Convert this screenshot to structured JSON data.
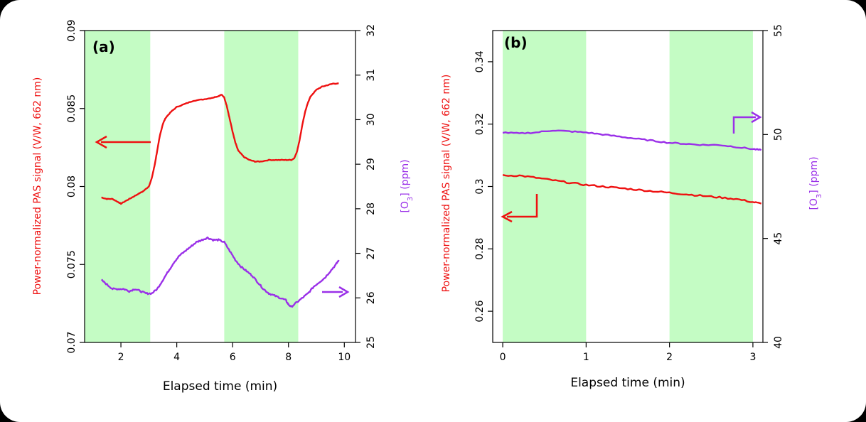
{
  "colors": {
    "pas": "#ee1111",
    "o3": "#9a30e8",
    "shade": "#c4fcc4",
    "axis": "#000000"
  },
  "chart_data": [
    {
      "type": "line",
      "panel_label": "(a)",
      "xlabel": "Elapsed time (min)",
      "ylabel_left": "Power-normalized PAS  signal  (V/W, 662 nm)",
      "ylabel_right_prefix": "[O",
      "ylabel_right_sub": "3",
      "ylabel_right_suffix": "] (ppm)",
      "xlim": [
        0.7,
        10.4
      ],
      "ylim_left": [
        0.07,
        0.09
      ],
      "ylim_right": [
        25,
        32
      ],
      "x_ticks": [
        2,
        4,
        6,
        8,
        10
      ],
      "x_tick_labels": [
        "2",
        "4",
        "6",
        "8",
        "10"
      ],
      "y_left_ticks": [
        0.07,
        0.075,
        0.08,
        0.085,
        0.09
      ],
      "y_left_tick_labels": [
        "0.07",
        "0.075",
        "0.08",
        "0.085",
        "0.09"
      ],
      "y_right_ticks": [
        25,
        26,
        27,
        28,
        29,
        30,
        31,
        32
      ],
      "y_right_tick_labels": [
        "25",
        "26",
        "27",
        "28",
        "29",
        "30",
        "31",
        "32"
      ],
      "shaded_intervals": [
        [
          0.7,
          3.05
        ],
        [
          5.7,
          8.35
        ]
      ],
      "series": [
        {
          "axis": "left",
          "x": [
            1.3,
            1.5,
            1.7,
            1.9,
            2.0,
            2.2,
            2.4,
            2.6,
            2.8,
            3.0,
            3.1,
            3.2,
            3.3,
            3.4,
            3.5,
            3.6,
            3.8,
            4.0,
            4.3,
            4.6,
            5.0,
            5.3,
            5.5,
            5.6,
            5.7,
            5.8,
            5.9,
            6.0,
            6.1,
            6.2,
            6.4,
            6.6,
            6.8,
            7.0,
            7.3,
            7.6,
            7.9,
            8.1,
            8.2,
            8.3,
            8.4,
            8.5,
            8.6,
            8.7,
            8.8,
            9.0,
            9.2,
            9.4,
            9.6,
            9.8
          ],
          "y": [
            0.0793,
            0.0792,
            0.0792,
            0.079,
            0.0789,
            0.0791,
            0.0793,
            0.0795,
            0.0797,
            0.08,
            0.0805,
            0.0813,
            0.0823,
            0.0833,
            0.084,
            0.0844,
            0.0848,
            0.0851,
            0.0853,
            0.0855,
            0.0856,
            0.0857,
            0.0858,
            0.0859,
            0.0857,
            0.0851,
            0.0843,
            0.0835,
            0.0828,
            0.0823,
            0.0819,
            0.0817,
            0.0816,
            0.0816,
            0.0817,
            0.0817,
            0.0817,
            0.0817,
            0.0818,
            0.0822,
            0.083,
            0.084,
            0.0848,
            0.0854,
            0.0858,
            0.0862,
            0.0864,
            0.0865,
            0.0866,
            0.0866
          ]
        },
        {
          "axis": "right",
          "x": [
            1.3,
            1.5,
            1.7,
            1.9,
            2.1,
            2.3,
            2.5,
            2.7,
            2.9,
            3.1,
            3.3,
            3.5,
            3.7,
            3.9,
            4.1,
            4.3,
            4.5,
            4.7,
            4.9,
            5.1,
            5.3,
            5.5,
            5.7,
            5.9,
            6.1,
            6.3,
            6.5,
            6.7,
            6.9,
            7.1,
            7.3,
            7.5,
            7.7,
            7.9,
            8.0,
            8.1,
            8.3,
            8.5,
            8.7,
            8.9,
            9.1,
            9.3,
            9.5,
            9.7,
            9.8
          ],
          "y": [
            26.4,
            26.3,
            26.2,
            26.2,
            26.2,
            26.15,
            26.2,
            26.15,
            26.1,
            26.1,
            26.2,
            26.4,
            26.6,
            26.8,
            26.95,
            27.05,
            27.15,
            27.25,
            27.3,
            27.35,
            27.3,
            27.3,
            27.25,
            27.05,
            26.85,
            26.7,
            26.6,
            26.5,
            26.35,
            26.2,
            26.1,
            26.05,
            26.0,
            25.95,
            25.85,
            25.8,
            25.9,
            26.0,
            26.1,
            26.25,
            26.35,
            26.45,
            26.6,
            26.75,
            26.85
          ]
        }
      ],
      "annotations": [
        {
          "type": "arrow",
          "direction": "left",
          "series_axis": "left"
        },
        {
          "type": "arrow",
          "direction": "right",
          "series_axis": "right"
        }
      ]
    },
    {
      "type": "line",
      "panel_label": "(b)",
      "xlabel": "Elapsed time (min)",
      "ylabel_left": "Power-normalized PAS  signal  (V/W, 662 nm)",
      "ylabel_right_prefix": "[O",
      "ylabel_right_sub": "3",
      "ylabel_right_suffix": "] (ppm)",
      "xlim": [
        -0.12,
        3.12
      ],
      "ylim_left": [
        0.25,
        0.35
      ],
      "ylim_right": [
        40,
        55
      ],
      "x_ticks": [
        0,
        1,
        2,
        3
      ],
      "x_tick_labels": [
        "0",
        "1",
        "2",
        "3"
      ],
      "y_left_ticks": [
        0.26,
        0.28,
        0.3,
        0.32,
        0.34
      ],
      "y_left_tick_labels": [
        "0.26",
        "0.28",
        "0.3",
        "0.32",
        "0.34"
      ],
      "y_right_ticks": [
        40,
        45,
        50,
        55
      ],
      "y_right_tick_labels": [
        "40",
        "45",
        "50",
        "55"
      ],
      "shaded_intervals": [
        [
          0.0,
          1.0
        ],
        [
          2.0,
          3.0
        ]
      ],
      "series": [
        {
          "axis": "left",
          "x": [
            0.0,
            0.2,
            0.4,
            0.6,
            0.8,
            1.0,
            1.2,
            1.4,
            1.6,
            1.8,
            2.0,
            2.2,
            2.4,
            2.6,
            2.8,
            3.0,
            3.1
          ],
          "y": [
            0.3035,
            0.3035,
            0.3028,
            0.302,
            0.3012,
            0.3005,
            0.3,
            0.2995,
            0.299,
            0.2985,
            0.298,
            0.2975,
            0.297,
            0.2965,
            0.296,
            0.295,
            0.2945
          ]
        },
        {
          "axis": "right",
          "x": [
            0.0,
            0.2,
            0.4,
            0.6,
            0.8,
            1.0,
            1.2,
            1.4,
            1.6,
            1.8,
            2.0,
            2.2,
            2.4,
            2.6,
            2.8,
            3.0,
            3.1
          ],
          "y": [
            50.1,
            50.05,
            50.1,
            50.2,
            50.15,
            50.1,
            50.0,
            49.9,
            49.8,
            49.7,
            49.6,
            49.55,
            49.5,
            49.5,
            49.4,
            49.3,
            49.25
          ]
        }
      ],
      "annotations": [
        {
          "type": "elbow-arrow",
          "direction": "left",
          "series_axis": "left"
        },
        {
          "type": "elbow-arrow",
          "direction": "right",
          "series_axis": "right"
        }
      ]
    }
  ]
}
